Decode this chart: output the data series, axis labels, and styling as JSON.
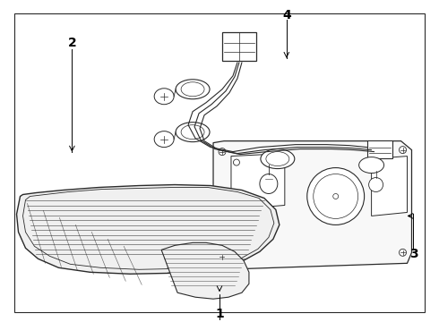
{
  "background_color": "#ffffff",
  "line_color": "#2a2a2a",
  "text_color": "#000000",
  "label_1": "1",
  "label_2": "2",
  "label_3": "3",
  "label_4": "4",
  "figsize": [
    4.9,
    3.6
  ],
  "dpi": 100
}
